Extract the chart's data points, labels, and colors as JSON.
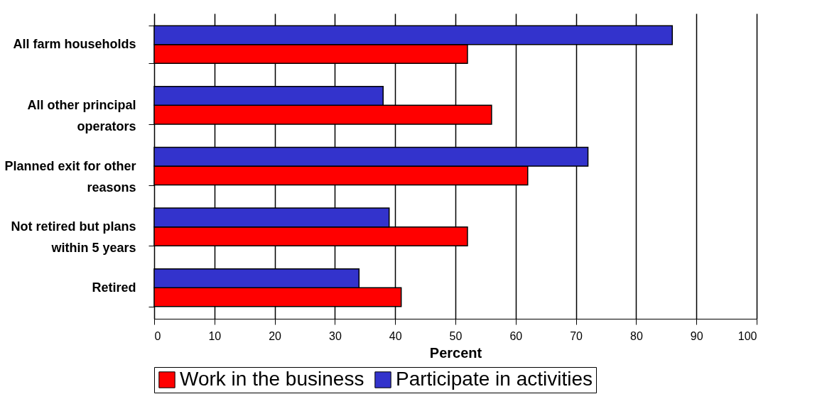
{
  "chart_data": {
    "type": "bar",
    "orientation": "horizontal",
    "xlabel": "Percent",
    "categories": [
      "All farm households",
      "All other principal operators",
      "Planned exit for other reasons",
      "Not retired but plans within 5 years",
      "Retired"
    ],
    "series": [
      {
        "name": "Work in the business",
        "color": "#ff0000",
        "values": [
          52,
          56,
          62,
          52,
          41
        ]
      },
      {
        "name": "Participate in activities",
        "color": "#3333cc",
        "values": [
          86,
          38,
          72,
          39,
          34
        ]
      }
    ],
    "xlim": [
      0,
      100
    ],
    "xticks": [
      0,
      10,
      20,
      30,
      40,
      50,
      60,
      70,
      80,
      90,
      100
    ],
    "grid": "x",
    "legend": "bottom"
  }
}
